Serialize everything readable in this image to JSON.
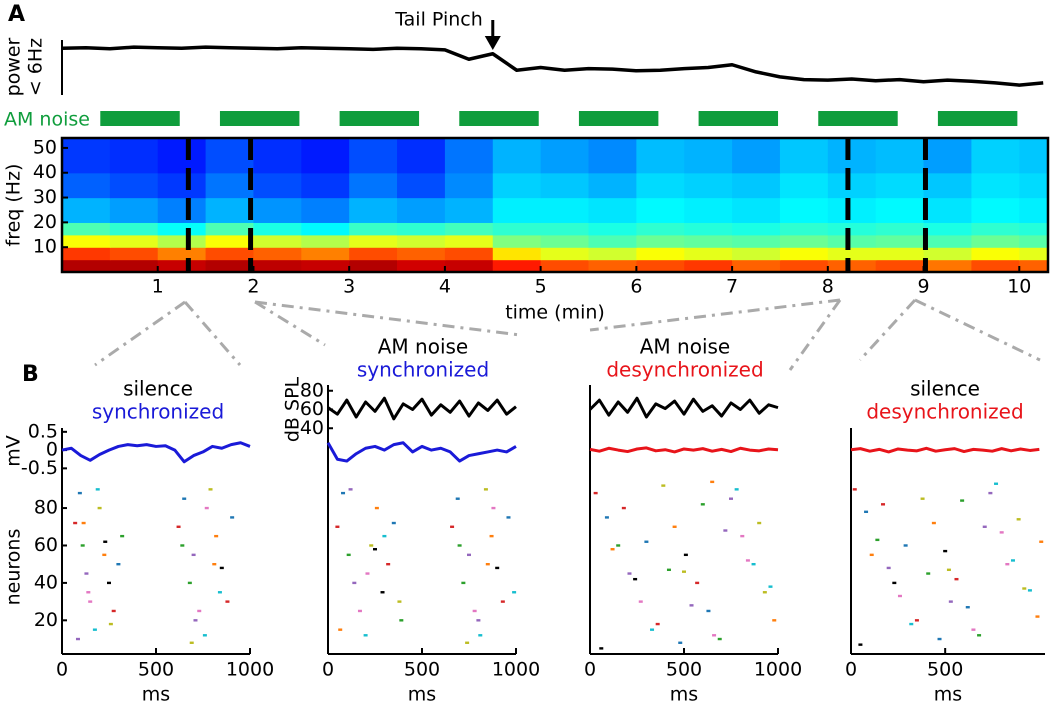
{
  "chart_data": [
    {
      "type": "line",
      "label": "A",
      "ylabel": [
        "power",
        "< 6Hz"
      ],
      "annotation": "Tail Pinch",
      "annotation_x": 4.5,
      "xlim": [
        0,
        10.3
      ],
      "ylim": [
        0,
        1
      ],
      "color": "#000000",
      "x": [
        0,
        0.25,
        0.5,
        0.75,
        1,
        1.25,
        1.5,
        1.75,
        2,
        2.25,
        2.5,
        2.75,
        3,
        3.25,
        3.5,
        3.75,
        4,
        4.25,
        4.5,
        4.75,
        5,
        5.25,
        5.5,
        5.75,
        6,
        6.25,
        6.5,
        6.75,
        7,
        7.25,
        7.5,
        7.75,
        8,
        8.25,
        8.5,
        8.75,
        9,
        9.25,
        9.5,
        9.75,
        10,
        10.25
      ],
      "values": [
        0.85,
        0.86,
        0.84,
        0.87,
        0.86,
        0.85,
        0.87,
        0.86,
        0.85,
        0.84,
        0.86,
        0.85,
        0.84,
        0.83,
        0.85,
        0.84,
        0.82,
        0.65,
        0.75,
        0.45,
        0.5,
        0.45,
        0.48,
        0.47,
        0.44,
        0.45,
        0.48,
        0.5,
        0.55,
        0.42,
        0.33,
        0.28,
        0.27,
        0.29,
        0.26,
        0.28,
        0.24,
        0.27,
        0.25,
        0.22,
        0.18,
        0.22
      ]
    },
    {
      "type": "interval",
      "label": "AM noise",
      "color": "#0f9d3c",
      "xlim": [
        0,
        10.3
      ],
      "intervals": [
        [
          0.4,
          1.23
        ],
        [
          1.65,
          2.48
        ],
        [
          2.9,
          3.73
        ],
        [
          4.15,
          4.98
        ],
        [
          5.4,
          6.23
        ],
        [
          6.65,
          7.48
        ],
        [
          7.9,
          8.73
        ],
        [
          9.15,
          9.98
        ]
      ]
    },
    {
      "type": "heatmap",
      "ylabel": "freq (Hz)",
      "xlabel": "time (min)",
      "colormap": "jet",
      "xlim": [
        0,
        10.3
      ],
      "ylim": [
        0,
        54
      ],
      "xticks": [
        1,
        2,
        3,
        4,
        5,
        6,
        7,
        8,
        9,
        10
      ],
      "yticks": [
        10,
        20,
        30,
        40,
        50
      ],
      "x_edges": [
        0,
        0.5,
        1,
        1.5,
        2,
        2.5,
        3,
        3.5,
        4,
        4.5,
        5,
        5.5,
        6,
        6.5,
        7,
        7.5,
        8,
        8.5,
        9,
        9.5,
        10,
        10.3
      ],
      "y_edges": [
        0,
        5,
        10,
        15,
        20,
        30,
        40,
        54
      ],
      "markers": [
        1.32,
        1.97,
        8.21,
        9.02
      ],
      "z": [
        [
          0.95,
          0.95,
          0.93,
          0.95,
          0.94,
          0.93,
          0.95,
          0.92,
          0.93,
          0.85,
          0.8,
          0.78,
          0.8,
          0.82,
          0.78,
          0.8,
          0.78,
          0.8,
          0.76,
          0.8,
          0.78
        ],
        [
          0.82,
          0.8,
          0.75,
          0.8,
          0.78,
          0.75,
          0.8,
          0.78,
          0.8,
          0.65,
          0.6,
          0.58,
          0.62,
          0.6,
          0.58,
          0.62,
          0.6,
          0.6,
          0.58,
          0.62,
          0.6
        ],
        [
          0.62,
          0.6,
          0.55,
          0.62,
          0.58,
          0.55,
          0.6,
          0.58,
          0.6,
          0.5,
          0.48,
          0.45,
          0.48,
          0.47,
          0.46,
          0.48,
          0.46,
          0.47,
          0.45,
          0.48,
          0.46
        ],
        [
          0.45,
          0.42,
          0.38,
          0.45,
          0.4,
          0.37,
          0.43,
          0.42,
          0.44,
          0.42,
          0.42,
          0.4,
          0.42,
          0.41,
          0.4,
          0.42,
          0.41,
          0.42,
          0.4,
          0.42,
          0.41
        ],
        [
          0.3,
          0.28,
          0.25,
          0.3,
          0.27,
          0.25,
          0.3,
          0.28,
          0.3,
          0.36,
          0.36,
          0.35,
          0.37,
          0.36,
          0.35,
          0.37,
          0.36,
          0.37,
          0.35,
          0.37,
          0.36
        ],
        [
          0.22,
          0.2,
          0.18,
          0.24,
          0.2,
          0.18,
          0.24,
          0.2,
          0.26,
          0.33,
          0.32,
          0.3,
          0.34,
          0.33,
          0.32,
          0.35,
          0.33,
          0.34,
          0.32,
          0.35,
          0.34
        ],
        [
          0.18,
          0.17,
          0.15,
          0.2,
          0.17,
          0.15,
          0.2,
          0.17,
          0.24,
          0.3,
          0.28,
          0.26,
          0.31,
          0.3,
          0.28,
          0.32,
          0.3,
          0.31,
          0.28,
          0.33,
          0.32
        ]
      ]
    },
    {
      "type": "raster",
      "label": "B",
      "title": "silence",
      "subtitle": "synchronized",
      "subtitle_color": "#1a1ad8",
      "xlim": [
        0,
        1000
      ],
      "xticks": [
        0,
        500,
        1000
      ],
      "xlabel": "ms",
      "t": [
        0,
        50,
        100,
        150,
        200,
        250,
        300,
        350,
        400,
        450,
        500,
        550,
        600,
        650,
        700,
        750,
        800,
        850,
        900,
        950,
        1000
      ],
      "mv": {
        "ylabel": "mV",
        "ylim": [
          -0.6,
          0.55
        ],
        "yticks": [
          0.5,
          0,
          -0.5
        ],
        "color": "#1a1ad8",
        "values": [
          0,
          0.05,
          -0.15,
          -0.28,
          -0.12,
          0,
          0.1,
          0.15,
          0.12,
          0.15,
          0.1,
          0.12,
          0,
          -0.32,
          -0.15,
          -0.05,
          0.1,
          0.05,
          0.15,
          0.2,
          0.1
        ]
      },
      "neurons": {
        "ylabel": "neurons",
        "ylim": [
          2,
          95
        ],
        "yticks": [
          20,
          40,
          60,
          80
        ]
      },
      "spike_colors": [
        "#d62728",
        "#1f77b4",
        "#2ca02c",
        "#9467bd",
        "#e377c2",
        "#17becf",
        "#bcbd22",
        "#ff7f0e",
        "#000000"
      ],
      "spikes": {
        "x": [
          70,
          95,
          110,
          130,
          150,
          175,
          200,
          225,
          250,
          275,
          300,
          320,
          85,
          140,
          190,
          260,
          115,
          230,
          620,
          650,
          680,
          700,
          730,
          760,
          790,
          820,
          850,
          880,
          905,
          640,
          710,
          770,
          840,
          690,
          810
        ],
        "y": [
          72,
          88,
          60,
          45,
          30,
          15,
          80,
          55,
          40,
          25,
          50,
          65,
          10,
          35,
          90,
          18,
          72,
          62,
          70,
          85,
          40,
          55,
          25,
          12,
          90,
          65,
          48,
          30,
          75,
          60,
          20,
          80,
          35,
          8,
          50
        ]
      }
    },
    {
      "type": "raster",
      "title": "AM noise",
      "subtitle": "synchronized",
      "subtitle_color": "#1a1ad8",
      "xlim": [
        0,
        1000
      ],
      "xticks": [
        0,
        500,
        1000
      ],
      "xlabel": "ms",
      "t": [
        0,
        50,
        100,
        150,
        200,
        250,
        300,
        350,
        400,
        450,
        500,
        550,
        600,
        650,
        700,
        750,
        800,
        850,
        900,
        950,
        1000
      ],
      "spl": {
        "ylabel": "dB SPL",
        "ylim": [
          36,
          84
        ],
        "yticks": [
          40,
          60,
          80
        ],
        "color": "#000000",
        "values": [
          62,
          55,
          70,
          52,
          68,
          58,
          72,
          50,
          66,
          60,
          71,
          54,
          65,
          57,
          69,
          53,
          67,
          59,
          70,
          55,
          63
        ]
      },
      "mv": {
        "ylim": [
          -0.6,
          0.55
        ],
        "color": "#1a1ad8",
        "values": [
          0.2,
          -0.25,
          -0.3,
          -0.1,
          0.05,
          0.1,
          0,
          0.15,
          0.2,
          -0.05,
          0.1,
          0,
          0.05,
          -0.05,
          -0.3,
          -0.15,
          -0.1,
          -0.05,
          0,
          -0.05,
          0.1
        ]
      },
      "neurons": {
        "ylim": [
          2,
          95
        ]
      },
      "spike_colors": [
        "#d62728",
        "#1f77b4",
        "#2ca02c",
        "#9467bd",
        "#e377c2",
        "#17becf",
        "#bcbd22",
        "#ff7f0e",
        "#000000"
      ],
      "spikes": {
        "x": [
          50,
          80,
          110,
          140,
          170,
          200,
          230,
          260,
          290,
          320,
          350,
          390,
          120,
          210,
          300,
          380,
          65,
          250,
          660,
          690,
          720,
          750,
          780,
          810,
          840,
          870,
          900,
          930,
          960,
          700,
          800,
          880,
          990,
          740,
          850
        ],
        "y": [
          70,
          88,
          55,
          40,
          25,
          12,
          60,
          80,
          35,
          50,
          72,
          20,
          90,
          45,
          65,
          30,
          15,
          58,
          70,
          85,
          40,
          55,
          25,
          12,
          90,
          65,
          48,
          30,
          75,
          60,
          20,
          80,
          35,
          8,
          50
        ]
      }
    },
    {
      "type": "raster",
      "title": "AM noise",
      "subtitle": "desynchronized",
      "subtitle_color": "#e8141a",
      "xlim": [
        0,
        1000
      ],
      "xticks": [
        0,
        500,
        1000
      ],
      "xlabel": "ms",
      "t": [
        0,
        50,
        100,
        150,
        200,
        250,
        300,
        350,
        400,
        450,
        500,
        550,
        600,
        650,
        700,
        750,
        800,
        850,
        900,
        950,
        1000
      ],
      "spl": {
        "ylim": [
          36,
          84
        ],
        "color": "#000000",
        "values": [
          60,
          70,
          54,
          68,
          57,
          72,
          52,
          66,
          61,
          69,
          55,
          71,
          58,
          64,
          53,
          67,
          60,
          70,
          56,
          65,
          62
        ]
      },
      "mv": {
        "ylim": [
          -0.6,
          0.55
        ],
        "color": "#e8141a",
        "values": [
          0.02,
          -0.03,
          0.05,
          0,
          -0.04,
          0.03,
          0.06,
          -0.02,
          0.01,
          -0.05,
          0.03,
          0,
          0.04,
          -0.03,
          0.02,
          -0.04,
          0.05,
          0,
          -0.02,
          0.03,
          0.01
        ]
      },
      "neurons": {
        "ylim": [
          2,
          95
        ]
      },
      "spike_colors": [
        "#d62728",
        "#1f77b4",
        "#2ca02c",
        "#9467bd",
        "#e377c2",
        "#17becf",
        "#bcbd22",
        "#ff7f0e",
        "#000000"
      ],
      "spikes": {
        "x": [
          30,
          90,
          150,
          210,
          270,
          330,
          390,
          450,
          510,
          570,
          630,
          690,
          750,
          810,
          870,
          930,
          980,
          60,
          180,
          300,
          420,
          540,
          660,
          780,
          900,
          120,
          240,
          360,
          480,
          600,
          720,
          840,
          960,
          500,
          650
        ],
        "y": [
          88,
          75,
          60,
          45,
          30,
          15,
          92,
          70,
          55,
          40,
          25,
          10,
          85,
          65,
          50,
          35,
          20,
          5,
          80,
          62,
          47,
          28,
          12,
          90,
          72,
          58,
          42,
          18,
          8,
          82,
          68,
          52,
          38,
          46,
          94
        ]
      }
    },
    {
      "type": "raster",
      "title": "silence",
      "subtitle": "desynchronized",
      "subtitle_color": "#e8141a",
      "xlim": [
        0,
        1030
      ],
      "xticks": [
        0,
        500
      ],
      "xlabel": "ms",
      "t": [
        0,
        50,
        100,
        150,
        200,
        250,
        300,
        350,
        400,
        450,
        500,
        550,
        600,
        650,
        700,
        750,
        800,
        850,
        900,
        950,
        1000
      ],
      "mv": {
        "ylim": [
          -0.6,
          0.55
        ],
        "color": "#e8141a",
        "values": [
          0.01,
          0.04,
          -0.03,
          0.02,
          -0.05,
          0.03,
          0,
          -0.02,
          0.05,
          -0.03,
          0.01,
          0.04,
          -0.04,
          0.02,
          0,
          -0.03,
          0.04,
          -0.02,
          0.03,
          -0.01,
          0.02
        ]
      },
      "neurons": {
        "ylim": [
          2,
          95
        ]
      },
      "spike_colors": [
        "#d62728",
        "#1f77b4",
        "#2ca02c",
        "#9467bd",
        "#e377c2",
        "#17becf",
        "#bcbd22",
        "#ff7f0e",
        "#000000"
      ],
      "spikes": {
        "x": [
          20,
          80,
          140,
          200,
          260,
          320,
          380,
          440,
          500,
          560,
          620,
          680,
          740,
          800,
          860,
          920,
          990,
          50,
          170,
          290,
          410,
          530,
          650,
          770,
          890,
          110,
          230,
          350,
          470,
          590,
          710,
          830,
          950,
          520,
          1010
        ],
        "y": [
          90,
          78,
          63,
          48,
          33,
          18,
          85,
          72,
          57,
          42,
          27,
          12,
          88,
          67,
          52,
          37,
          22,
          7,
          82,
          60,
          45,
          30,
          15,
          93,
          74,
          55,
          40,
          20,
          10,
          84,
          70,
          50,
          36,
          47,
          62
        ]
      }
    }
  ]
}
